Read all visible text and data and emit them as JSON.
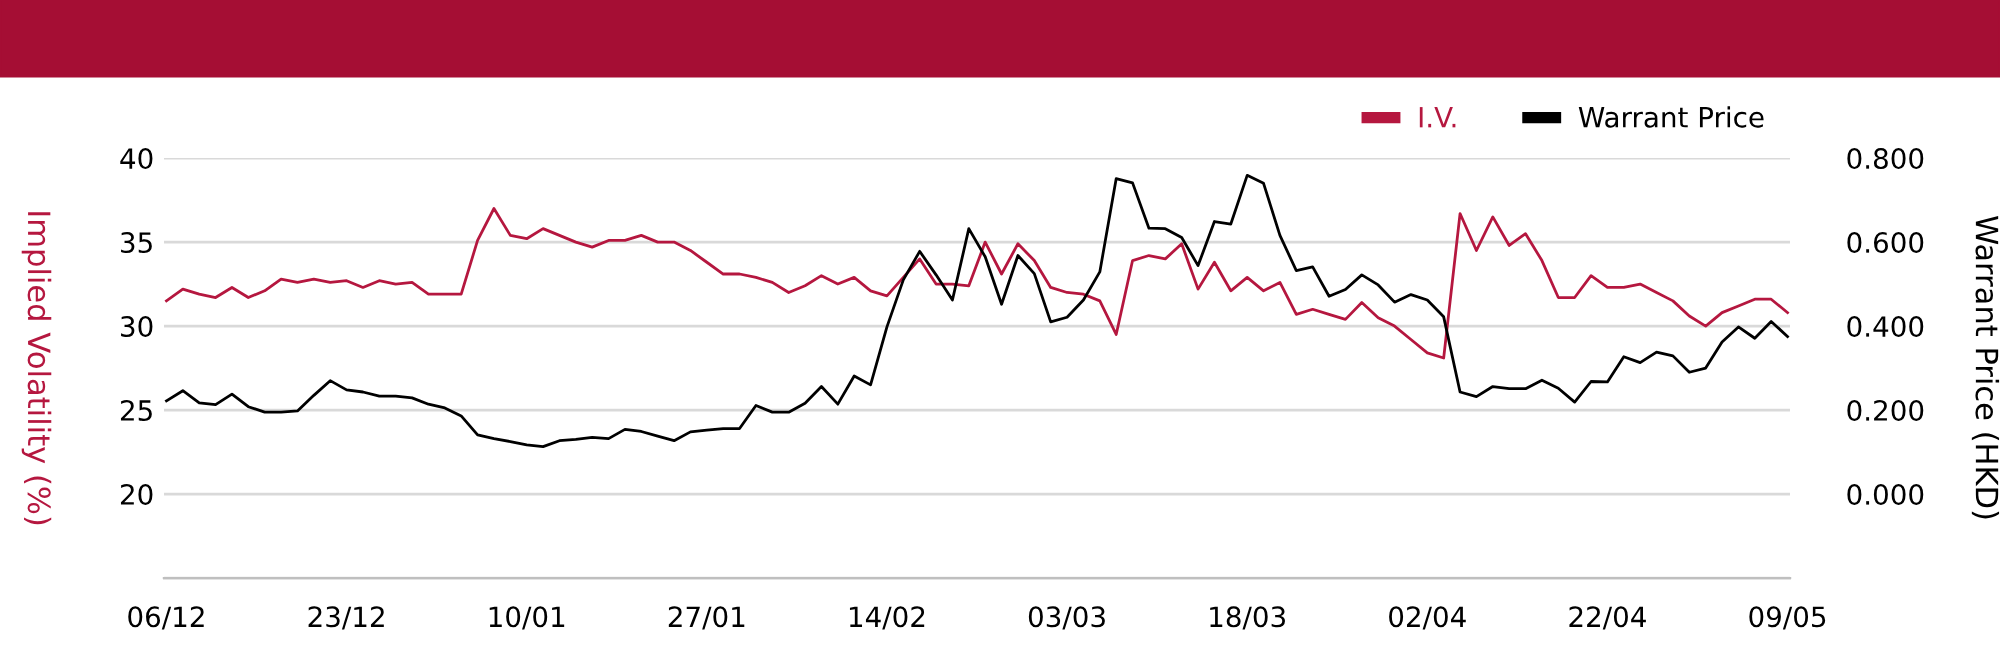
{
  "chart_data": {
    "type": "line",
    "categories": [
      "06/12",
      null,
      null,
      null,
      null,
      null,
      null,
      null,
      null,
      null,
      null,
      "23/12",
      null,
      null,
      null,
      null,
      null,
      null,
      null,
      null,
      null,
      null,
      "10/01",
      null,
      null,
      null,
      null,
      null,
      null,
      null,
      null,
      null,
      null,
      "27/01",
      null,
      null,
      null,
      null,
      null,
      null,
      null,
      null,
      null,
      null,
      "14/02",
      null,
      null,
      null,
      null,
      null,
      null,
      null,
      null,
      null,
      null,
      "03/03",
      null,
      null,
      null,
      null,
      null,
      null,
      null,
      null,
      null,
      null,
      "18/03",
      null,
      null,
      null,
      null,
      null,
      null,
      null,
      null,
      null,
      null,
      "02/04",
      null,
      null,
      null,
      null,
      null,
      null,
      null,
      null,
      null,
      null,
      "22/04",
      null,
      null,
      null,
      null,
      null,
      null,
      null,
      null,
      null,
      null,
      "09/05"
    ],
    "series": [
      {
        "name": "I.V.",
        "color": "#b5173f",
        "values": [
          31.5,
          32.2,
          31.9,
          31.7,
          32.3,
          31.7,
          32.1,
          32.8,
          32.6,
          32.8,
          32.6,
          32.7,
          32.3,
          32.7,
          32.5,
          32.6,
          31.9,
          31.9,
          31.9,
          35.1,
          37.0,
          35.4,
          35.2,
          35.8,
          35.4,
          35.0,
          34.7,
          35.1,
          35.1,
          35.4,
          35.0,
          35.0,
          34.5,
          33.8,
          33.1,
          33.1,
          32.9,
          32.6,
          32.0,
          32.4,
          33.0,
          32.5,
          32.9,
          32.1,
          31.8,
          32.9,
          34.0,
          32.5,
          32.5,
          32.4,
          35.0,
          33.1,
          34.9,
          33.9,
          32.3,
          32.0,
          31.9,
          31.5,
          29.5,
          33.9,
          34.2,
          34.0,
          34.9,
          32.2,
          33.8,
          32.1,
          32.9,
          32.1,
          32.6,
          30.7,
          31.0,
          30.7,
          30.4,
          31.4,
          30.5,
          30.0,
          29.2,
          28.4,
          28.1,
          36.7,
          34.5,
          36.5,
          34.8,
          35.5,
          33.9,
          31.7,
          31.7,
          33.0,
          32.3,
          32.3,
          32.5,
          32.0,
          31.5,
          30.6,
          30.0,
          30.8,
          31.2,
          31.6,
          31.6,
          30.8
        ]
      },
      {
        "name": "Warrant Price",
        "color": "#000000",
        "axis": "y2",
        "values": [
          0.222,
          0.246,
          0.217,
          0.213,
          0.238,
          0.208,
          0.195,
          0.195,
          0.198,
          0.235,
          0.27,
          0.248,
          0.243,
          0.233,
          0.233,
          0.229,
          0.214,
          0.205,
          0.186,
          0.141,
          0.132,
          0.125,
          0.117,
          0.113,
          0.127,
          0.13,
          0.135,
          0.132,
          0.154,
          0.149,
          0.138,
          0.127,
          0.148,
          0.152,
          0.156,
          0.156,
          0.211,
          0.195,
          0.195,
          0.216,
          0.256,
          0.214,
          0.281,
          0.26,
          0.398,
          0.51,
          0.578,
          0.522,
          0.462,
          0.632,
          0.565,
          0.452,
          0.568,
          0.525,
          0.41,
          0.421,
          0.462,
          0.529,
          0.751,
          0.741,
          0.633,
          0.632,
          0.611,
          0.544,
          0.649,
          0.643,
          0.759,
          0.74,
          0.616,
          0.532,
          0.541,
          0.471,
          0.487,
          0.522,
          0.498,
          0.457,
          0.475,
          0.462,
          0.422,
          0.243,
          0.232,
          0.256,
          0.251,
          0.251,
          0.271,
          0.252,
          0.219,
          0.268,
          0.267,
          0.327,
          0.313,
          0.338,
          0.329,
          0.29,
          0.3,
          0.362,
          0.398,
          0.371,
          0.411,
          0.375
        ]
      }
    ],
    "ylabel": "Implied Volatility (%)",
    "y2label": "Warrant Price (HKD)",
    "ylim": [
      15,
      40
    ],
    "yticks": [
      {
        "value": 15,
        "label": null
      },
      20,
      25,
      30,
      35,
      40
    ],
    "y2lim": [
      -0.2,
      0.8
    ],
    "y2ticks": [
      {
        "value": 0,
        "label": "0.000"
      },
      {
        "value": 0.2,
        "label": "0.200"
      },
      {
        "value": 0.4,
        "label": "0.400"
      },
      {
        "value": 0.6,
        "label": "0.600"
      },
      {
        "value": 0.8,
        "label": "0.800"
      }
    ],
    "grid": "y",
    "legend": "top right",
    "marker": "none",
    "line_style": "solid"
  }
}
